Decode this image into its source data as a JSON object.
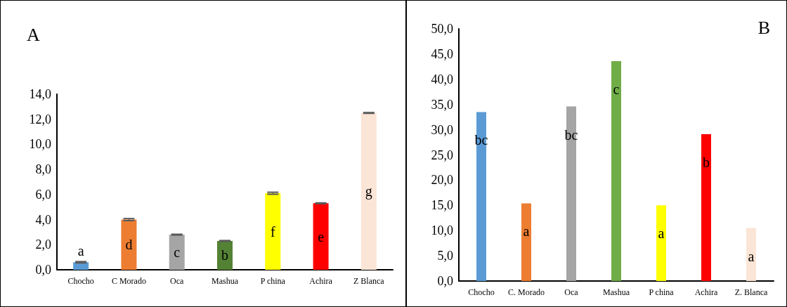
{
  "chart_data": [
    {
      "type": "bar",
      "title": "A",
      "categories": [
        "Chocho",
        "C Morado",
        "Oca",
        "Mashua",
        "P china",
        "Achira",
        "Z Blanca"
      ],
      "values": [
        0.6,
        4.0,
        2.8,
        2.3,
        6.1,
        5.3,
        12.5
      ],
      "errors": [
        0.05,
        0.08,
        0.03,
        0.03,
        0.08,
        0.03,
        0.03
      ],
      "colors": [
        "#5b9bd5",
        "#ed7d31",
        "#a5a5a5",
        "#548235",
        "#ffff00",
        "#ff0000",
        "#fbe5d6"
      ],
      "ylim": [
        0,
        14
      ],
      "yticks": [
        {
          "value": 0,
          "label": "0,0"
        },
        {
          "value": 2,
          "label": "2,0"
        },
        {
          "value": 4,
          "label": "4,0"
        },
        {
          "value": 6,
          "label": "6,0"
        },
        {
          "value": 8,
          "label": "8,0"
        },
        {
          "value": 10,
          "label": "10,0"
        },
        {
          "value": 12,
          "label": "12,0"
        },
        {
          "value": 14,
          "label": "14,0"
        }
      ],
      "value_labels": [
        "a",
        "d",
        "c",
        "b",
        "f",
        "e",
        "g"
      ],
      "grid": false
    },
    {
      "type": "bar",
      "title": "B",
      "categories": [
        "Chocho",
        "C. Morado",
        "Oca",
        "Mashua",
        "P china",
        "Achira",
        "Z. Blanca"
      ],
      "values": [
        33.5,
        15.4,
        34.6,
        43.6,
        15.0,
        29.1,
        10.5
      ],
      "colors": [
        "#5b9bd5",
        "#ed7d31",
        "#a5a5a5",
        "#70ad47",
        "#ffff00",
        "#ff0000",
        "#fbe5d6"
      ],
      "ylim": [
        0,
        50
      ],
      "yticks": [
        {
          "value": 0,
          "label": "0,0"
        },
        {
          "value": 5,
          "label": "5,0"
        },
        {
          "value": 10,
          "label": "10,0"
        },
        {
          "value": 15,
          "label": "15,0"
        },
        {
          "value": 20,
          "label": "20,0"
        },
        {
          "value": 25,
          "label": "25,0"
        },
        {
          "value": 30,
          "label": "30,0"
        },
        {
          "value": 35,
          "label": "35,0"
        },
        {
          "value": 40,
          "label": "40,0"
        },
        {
          "value": 45,
          "label": "45,0"
        },
        {
          "value": 50,
          "label": "50,0"
        }
      ],
      "value_labels": [
        "bc",
        "a",
        "bc",
        "c",
        "a",
        "b",
        "a"
      ],
      "grid": false
    }
  ]
}
